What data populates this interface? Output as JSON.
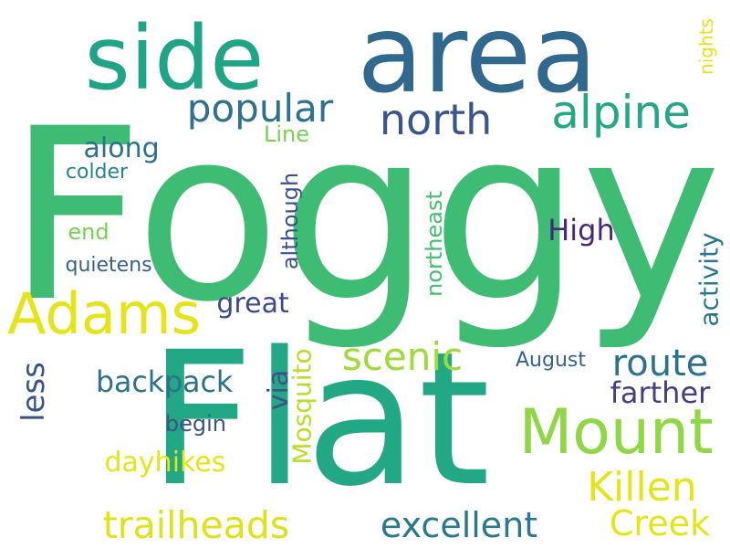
{
  "words": [
    {
      "text": "Foggy",
      "color": "#3fbc73",
      "rot": 0
    },
    {
      "text": "Flat",
      "color": "#22a884",
      "rot": 0
    },
    {
      "text": "area",
      "color": "#31688e",
      "rot": 0
    },
    {
      "text": "side",
      "color": "#20a486",
      "rot": 0
    },
    {
      "text": "Mount",
      "color": "#8fd744",
      "rot": 0
    },
    {
      "text": "Adams",
      "color": "#e5e419",
      "rot": 0
    },
    {
      "text": "alpine",
      "color": "#22a884",
      "rot": 0
    },
    {
      "text": "north",
      "color": "#39568c",
      "rot": 0
    },
    {
      "text": "popular",
      "color": "#2c728e",
      "rot": 0
    },
    {
      "text": "excellent",
      "color": "#2a788e",
      "rot": 0
    },
    {
      "text": "trailheads",
      "color": "#dde318",
      "rot": 0
    },
    {
      "text": "Killen",
      "color": "#e5e419",
      "rot": 0
    },
    {
      "text": "Creek",
      "color": "#e5e419",
      "rot": 0
    },
    {
      "text": "scenic",
      "color": "#a0da39",
      "rot": 0
    },
    {
      "text": "route",
      "color": "#2c728e",
      "rot": 0
    },
    {
      "text": "less",
      "color": "#3b528b",
      "rot": -90
    },
    {
      "text": "via",
      "color": "#3b528b",
      "rot": -90
    },
    {
      "text": "backpack",
      "color": "#2c728e",
      "rot": 0
    },
    {
      "text": "great",
      "color": "#3e4989",
      "rot": 0
    },
    {
      "text": "activity",
      "color": "#2a788e",
      "rot": -90
    },
    {
      "text": "Mosquito",
      "color": "#b8de29",
      "rot": -90
    },
    {
      "text": "dayhikes",
      "color": "#e5e419",
      "rot": 0
    },
    {
      "text": "High",
      "color": "#482878",
      "rot": 0
    },
    {
      "text": "farther",
      "color": "#433e85",
      "rot": 0
    },
    {
      "text": "along",
      "color": "#2c728e",
      "rot": 0
    },
    {
      "text": "colder",
      "color": "#25858e",
      "rot": 0
    },
    {
      "text": "quietens",
      "color": "#33638d",
      "rot": 0
    },
    {
      "text": "end",
      "color": "#7ad151",
      "rot": 0
    },
    {
      "text": "although",
      "color": "#3b528b",
      "rot": -90
    },
    {
      "text": "northeast",
      "color": "#44bf70",
      "rot": -90
    },
    {
      "text": "Line",
      "color": "#7ad151",
      "rot": 0
    },
    {
      "text": "August",
      "color": "#33638d",
      "rot": 0
    },
    {
      "text": "begin",
      "color": "#3b528b",
      "rot": 0
    },
    {
      "text": "nights",
      "color": "#e5e419",
      "rot": -90
    }
  ]
}
